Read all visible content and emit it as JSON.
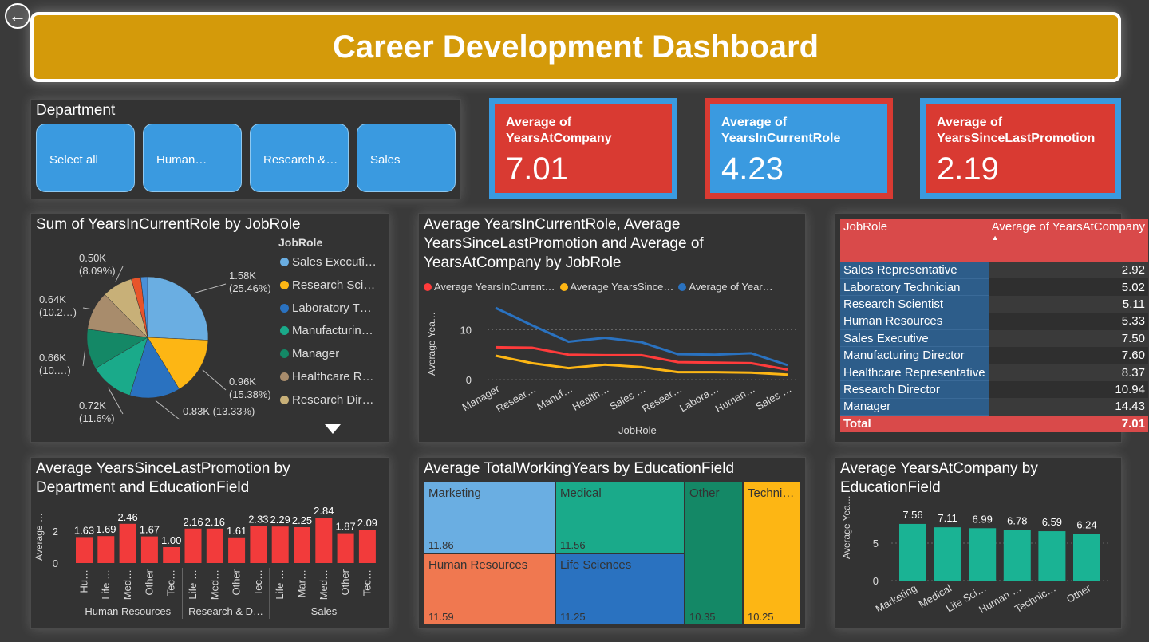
{
  "header": {
    "title": "Career Development Dashboard"
  },
  "slicer": {
    "title": "Department",
    "options": [
      "Select all",
      "Human…",
      "Research &…",
      "Sales"
    ]
  },
  "kpis": [
    {
      "label": "Average of YearsAtCompany",
      "value": "7.01",
      "bg": "#d93a32",
      "border": "#3a9ae0"
    },
    {
      "label": "Average of YearsInCurrentRole",
      "value": "4.23",
      "bg": "#3a9ae0",
      "border": "#d93a32"
    },
    {
      "label": "Average of YearsSinceLastPromotion",
      "value": "2.19",
      "bg": "#d93a32",
      "border": "#3a9ae0"
    }
  ],
  "pie": {
    "title": "Sum of YearsInCurrentRole by JobRole",
    "legend_title": "JobRole",
    "legend": [
      {
        "label": "Sales Executi…",
        "color": "#6aaee2"
      },
      {
        "label": "Research Sci…",
        "color": "#fdb614"
      },
      {
        "label": "Laboratory T…",
        "color": "#2a72c0"
      },
      {
        "label": "Manufacturin…",
        "color": "#1aaa8a"
      },
      {
        "label": "Manager",
        "color": "#148866"
      },
      {
        "label": "Healthcare R…",
        "color": "#a88c6c"
      },
      {
        "label": "Research Dir…",
        "color": "#c8b078"
      }
    ],
    "slices": [
      {
        "label": "1.58K\n(25.46%)",
        "value": 25.46,
        "color": "#6aaee2"
      },
      {
        "label": "0.96K\n(15.38%)",
        "value": 15.38,
        "color": "#fdb614"
      },
      {
        "label": "0.83K (13.33%)",
        "value": 13.33,
        "color": "#2a72c0"
      },
      {
        "label": "0.72K\n(11.6%)",
        "value": 11.6,
        "color": "#1aaa8a"
      },
      {
        "label": "0.66K\n(10.…)",
        "value": 10.6,
        "color": "#148866"
      },
      {
        "label": "0.64K\n(10.2…)",
        "value": 10.2,
        "color": "#a88c6c"
      },
      {
        "label": "0.50K\n(8.09%)",
        "value": 8.09,
        "color": "#c8b078"
      },
      {
        "label": "",
        "value": 2.5,
        "color": "#e8542a"
      },
      {
        "label": "",
        "value": 1.8,
        "color": "#4a90d9"
      }
    ],
    "more_icon": "triangle-down-icon"
  },
  "line": {
    "title": "Average YearsInCurrentRole, Average YearsSinceLastPromotion and Average of YearsAtCompany by JobRole",
    "xlabel": "JobRole",
    "ylabel": "Average Yea…",
    "legend": [
      {
        "label": "Average YearsInCurrent…",
        "color": "#ff3b3b"
      },
      {
        "label": "Average YearsSince…",
        "color": "#fdb614"
      },
      {
        "label": "Average of Year…",
        "color": "#2a72c0"
      }
    ],
    "yticks": [
      "10",
      "0"
    ]
  },
  "table": {
    "headers": [
      "JobRole",
      "Average of YearsAtCompany"
    ],
    "rows": [
      [
        "Sales Representative",
        "2.92"
      ],
      [
        "Laboratory Technician",
        "5.02"
      ],
      [
        "Research Scientist",
        "5.11"
      ],
      [
        "Human Resources",
        "5.33"
      ],
      [
        "Sales Executive",
        "7.50"
      ],
      [
        "Manufacturing Director",
        "7.60"
      ],
      [
        "Healthcare Representative",
        "8.37"
      ],
      [
        "Research Director",
        "10.94"
      ],
      [
        "Manager",
        "14.43"
      ]
    ],
    "total": [
      "Total",
      "7.01"
    ]
  },
  "promo": {
    "title": "Average YearsSinceLastPromotion by Department and EducationField",
    "ylabel": "Average …",
    "yticks": [
      "2",
      "0"
    ],
    "groups": [
      "Human Resources",
      "Research & D…",
      "Sales"
    ],
    "bar_color": "#f23b3b"
  },
  "treemap": {
    "title": "Average TotalWorkingYears by EducationField",
    "cells": [
      {
        "name": "Marketing",
        "value": "11.86",
        "color": "#6aaee2"
      },
      {
        "name": "Medical",
        "value": "11.56",
        "color": "#1aaa8a"
      },
      {
        "name": "Other",
        "value": "10.35",
        "color": "#148866"
      },
      {
        "name": "Techni…",
        "value": "10.25",
        "color": "#fdb614"
      },
      {
        "name": "Human Resources",
        "value": "11.59",
        "color": "#f07850"
      },
      {
        "name": "Life Sciences",
        "value": "11.25",
        "color": "#2a72c0"
      }
    ]
  },
  "edu": {
    "title": "Average YearsAtCompany by EducationField",
    "ylabel": "Average Yea…",
    "yticks": [
      "5",
      "0"
    ],
    "bar_color": "#1ab394"
  },
  "chart_data": [
    {
      "type": "line",
      "title": "Average YearsInCurrentRole, Average YearsSinceLastPromotion and Average of YearsAtCompany by JobRole",
      "xlabel": "JobRole",
      "ylabel": "Average Yea…",
      "categories": [
        "Manager",
        "Resear…",
        "Manuf…",
        "Health…",
        "Sales …",
        "Resear…",
        "Labora…",
        "Human…",
        "Sales …"
      ],
      "ylim": [
        0,
        16
      ],
      "series": [
        {
          "name": "Average YearsInCurrent…",
          "values": [
            6.5,
            6.4,
            5.0,
            4.9,
            4.9,
            3.5,
            3.4,
            3.3,
            2.0
          ]
        },
        {
          "name": "Average YearsSince…",
          "values": [
            4.8,
            3.3,
            2.3,
            3.0,
            2.5,
            1.5,
            1.5,
            1.4,
            1.0
          ]
        },
        {
          "name": "Average of Year…",
          "values": [
            14.4,
            10.9,
            7.6,
            8.4,
            7.5,
            5.1,
            5.0,
            5.3,
            2.9
          ]
        }
      ]
    },
    {
      "type": "bar",
      "title": "Average YearsSinceLastPromotion by Department and EducationField",
      "ylabel": "Average …",
      "categories": [
        "Hu…",
        "Life …",
        "Med…",
        "Other",
        "Tec…",
        "Life …",
        "Med…",
        "Other",
        "Tec…",
        "Life …",
        "Mar…",
        "Med…",
        "Other",
        "Tec…"
      ],
      "groups": [
        "Human Resources",
        "Human Resources",
        "Human Resources",
        "Human Resources",
        "Human Resources",
        "Research & D…",
        "Research & D…",
        "Research & D…",
        "Research & D…",
        "Sales",
        "Sales",
        "Sales",
        "Sales",
        "Sales"
      ],
      "values": [
        1.63,
        1.69,
        2.46,
        1.67,
        1.0,
        2.16,
        2.16,
        1.61,
        2.33,
        2.29,
        2.25,
        2.84,
        1.87,
        2.09
      ],
      "value_labels": [
        "1.63",
        "1.69",
        "2.46",
        "1.67",
        "1.00",
        "2.16",
        "2.16",
        "1.61",
        "2.33",
        "2.29",
        "2.25",
        "2.84",
        "1.87",
        "2.09"
      ],
      "ylim": [
        0,
        3
      ]
    },
    {
      "type": "bar",
      "title": "Average YearsAtCompany by EducationField",
      "ylabel": "Average Yea…",
      "categories": [
        "Marketing",
        "Medical",
        "Life Sci…",
        "Human …",
        "Technic…",
        "Other"
      ],
      "values": [
        7.56,
        7.11,
        6.99,
        6.78,
        6.59,
        6.24
      ],
      "value_labels": [
        "7.56",
        "7.11",
        "6.99",
        "6.78",
        "6.59",
        "6.24"
      ],
      "ylim": [
        0,
        9
      ]
    },
    {
      "type": "pie",
      "title": "Sum of YearsInCurrentRole by JobRole",
      "categories": [
        "Sales Executi…",
        "Research Sci…",
        "Laboratory T…",
        "Manufacturin…",
        "Manager",
        "Healthcare R…",
        "Research Dir…"
      ],
      "values": [
        1.58,
        0.96,
        0.83,
        0.72,
        0.66,
        0.64,
        0.5
      ]
    }
  ]
}
